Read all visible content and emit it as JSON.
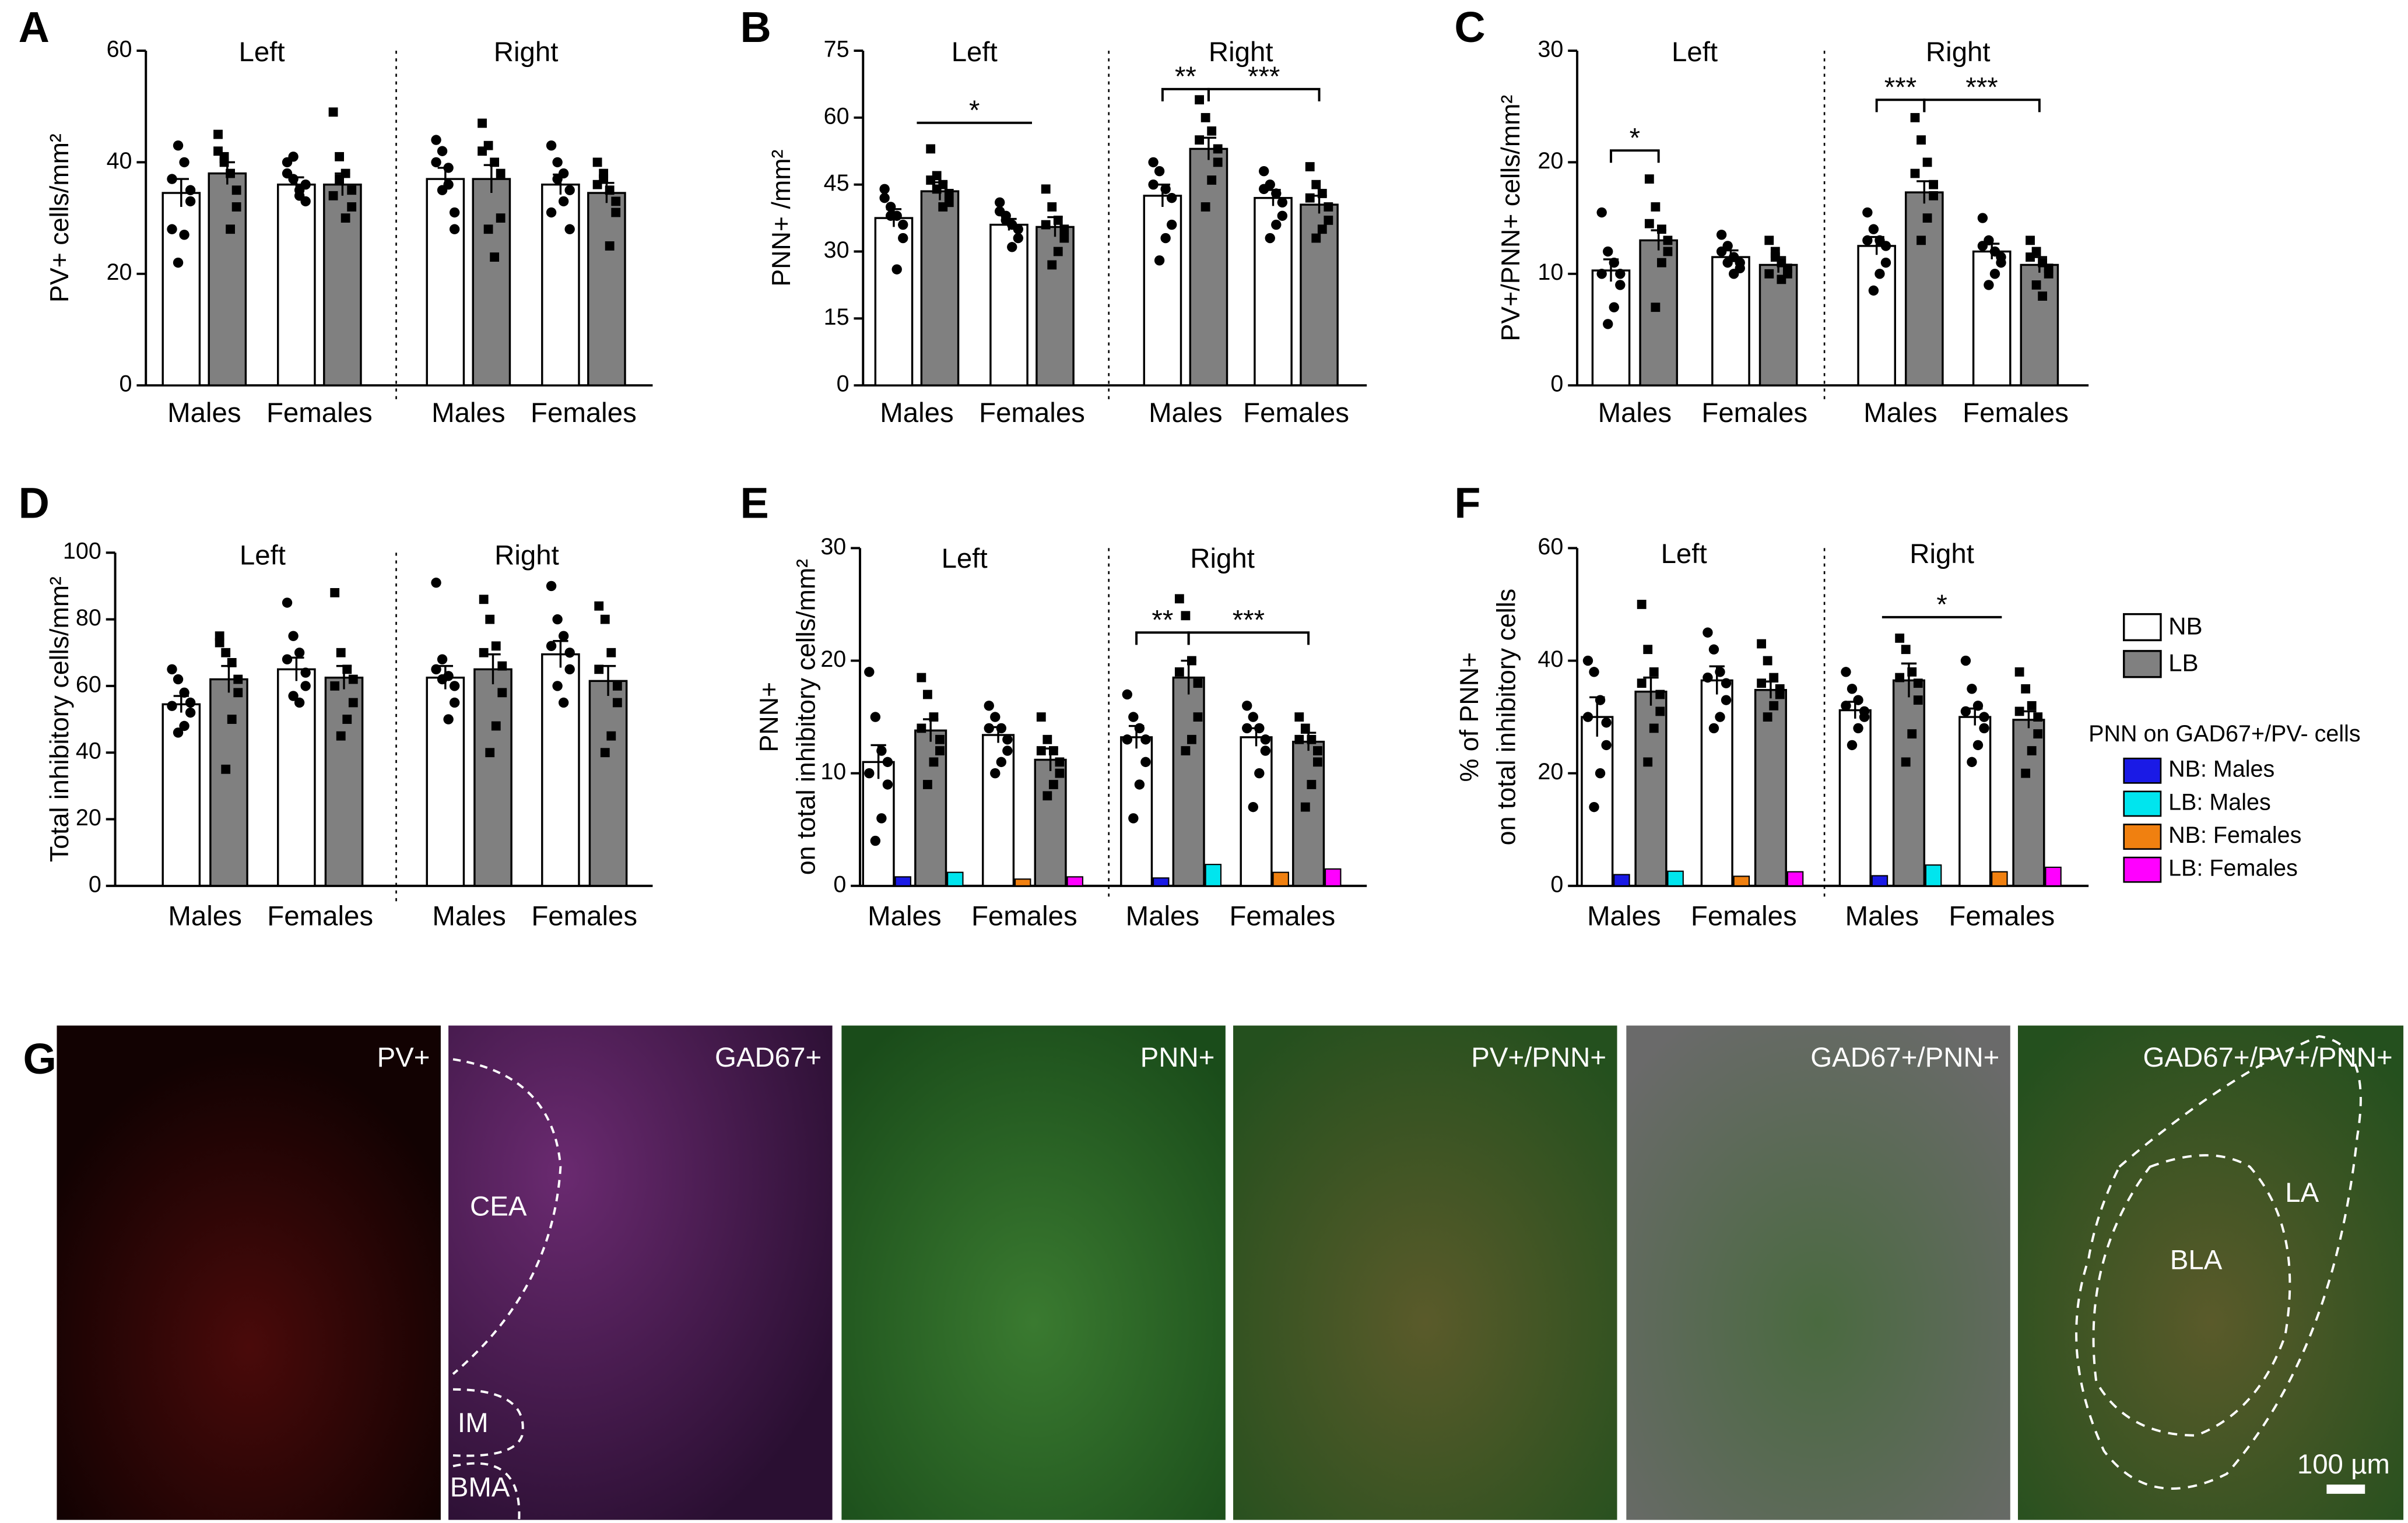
{
  "chart_data": [
    {
      "type": "bar",
      "panel": "A",
      "ylabel": [
        "PV+ cells/mm²"
      ],
      "groups": [
        "Left",
        "Right"
      ],
      "categories": [
        "Males",
        "Females",
        "Males",
        "Females"
      ],
      "ylim": [
        0,
        60
      ],
      "yticks": [
        0,
        20,
        40,
        60
      ],
      "annotations": [],
      "series": [
        {
          "color": "#ffffff",
          "values": [
            34.5,
            36,
            37,
            36
          ],
          "errors": [
            2.5,
            1.3,
            2,
            1.8
          ],
          "points": [
            [
              28,
              43,
              40,
              35,
              33,
              27,
              22,
              37
            ],
            [
              40,
              37,
              34,
              33,
              36,
              35,
              41,
              38
            ],
            [
              44,
              42,
              36,
              31,
              28,
              39,
              35,
              40
            ],
            [
              43,
              40,
              38,
              35,
              28,
              33,
              37,
              31
            ]
          ]
        },
        {
          "color": "#808080",
          "values": [
            38,
            36,
            37,
            34.5
          ],
          "errors": [
            2,
            2,
            2.5,
            1.8
          ],
          "points": [
            [
              42,
              41,
              38,
              35,
              32,
              28,
              40,
              45
            ],
            [
              49,
              41,
              38,
              35,
              32,
              30,
              37,
              34
            ],
            [
              47,
              43,
              40,
              38,
              30,
              23,
              28,
              42
            ],
            [
              40,
              37,
              35,
              33,
              31,
              25,
              38,
              36
            ]
          ]
        }
      ]
    },
    {
      "type": "bar",
      "panel": "B",
      "ylabel": [
        "PNN+ /mm²"
      ],
      "groups": [
        "Left",
        "Right"
      ],
      "categories": [
        "Males",
        "Females",
        "Males",
        "Females"
      ],
      "ylim": [
        0,
        75
      ],
      "yticks": [
        0,
        15,
        30,
        45,
        60,
        75
      ],
      "annotations": [
        "*",
        "**",
        "***"
      ],
      "series": [
        {
          "color": "#ffffff",
          "values": [
            37.5,
            36,
            42.5,
            42
          ],
          "errors": [
            2,
            1.3,
            2.5,
            1.8
          ],
          "points": [
            [
              44,
              40,
              38,
              36,
              33,
              26,
              38,
              42
            ],
            [
              41,
              38,
              36,
              35,
              33,
              31,
              37,
              39
            ],
            [
              50,
              48,
              44,
              42,
              36,
              33,
              28,
              45
            ],
            [
              48,
              45,
              43,
              41,
              38,
              36,
              33,
              44
            ]
          ]
        },
        {
          "color": "#808080",
          "values": [
            43.5,
            35.5,
            53,
            40.5
          ],
          "errors": [
            2,
            2.2,
            2.5,
            2
          ],
          "points": [
            [
              53,
              47,
              45,
              43,
              41,
              40,
              44,
              46
            ],
            [
              44,
              40,
              37,
              35,
              33,
              30,
              27,
              36
            ],
            [
              64,
              60,
              57,
              53,
              50,
              46,
              40,
              55
            ],
            [
              49,
              45,
              43,
              40,
              37,
              35,
              33,
              42
            ]
          ]
        }
      ]
    },
    {
      "type": "bar",
      "panel": "C",
      "ylabel": [
        "PV+/PNN+ cells/mm²"
      ],
      "groups": [
        "Left",
        "Right"
      ],
      "categories": [
        "Males",
        "Females",
        "Males",
        "Females"
      ],
      "ylim": [
        0,
        30
      ],
      "yticks": [
        0,
        10,
        20,
        30
      ],
      "annotations": [
        "*",
        "***",
        "***"
      ],
      "series": [
        {
          "color": "#ffffff",
          "values": [
            10.3,
            11.5,
            12.5,
            12
          ],
          "errors": [
            1,
            0.6,
            0.8,
            0.7
          ],
          "points": [
            [
              15.5,
              12,
              11,
              10,
              9,
              7,
              5.5,
              10
            ],
            [
              13.5,
              12.5,
              11.5,
              11,
              10.5,
              10,
              11,
              12
            ],
            [
              15.5,
              14,
              13,
              12.5,
              11,
              10,
              8.5,
              13
            ],
            [
              15,
              13,
              12,
              11.5,
              11,
              10,
              9,
              12.5
            ]
          ]
        },
        {
          "color": "#808080",
          "values": [
            13,
            10.8,
            17.3,
            10.8
          ],
          "errors": [
            0.9,
            0.7,
            1,
            0.7
          ],
          "points": [
            [
              18.5,
              16,
              14,
              13,
              12,
              11,
              7,
              14.5
            ],
            [
              13,
              12,
              11,
              10.5,
              10,
              9.5,
              11.5,
              10
            ],
            [
              24,
              22,
              20,
              18,
              17,
              15,
              13,
              19
            ],
            [
              13,
              12,
              11,
              10.5,
              10,
              8,
              9,
              11.5
            ]
          ]
        }
      ]
    },
    {
      "type": "bar",
      "panel": "D",
      "ylabel": [
        "Total inhibitory cells/mm²"
      ],
      "groups": [
        "Left",
        "Right"
      ],
      "categories": [
        "Males",
        "Females",
        "Males",
        "Females"
      ],
      "ylim": [
        0,
        100
      ],
      "yticks": [
        0,
        20,
        40,
        60,
        80,
        100
      ],
      "annotations": [],
      "series": [
        {
          "color": "#ffffff",
          "values": [
            54.5,
            65,
            62.5,
            69.5
          ],
          "errors": [
            2.5,
            3.5,
            3.5,
            4
          ],
          "points": [
            [
              65,
              62,
              58,
              55,
              52,
              48,
              46,
              54
            ],
            [
              85,
              75,
              70,
              64,
              60,
              55,
              57,
              68
            ],
            [
              91,
              68,
              63,
              60,
              55,
              50,
              62,
              65
            ],
            [
              90,
              80,
              75,
              70,
              65,
              55,
              60,
              72
            ]
          ]
        },
        {
          "color": "#808080",
          "values": [
            62,
            62.5,
            65,
            61.5
          ],
          "errors": [
            4,
            3.5,
            4.5,
            4.5
          ],
          "points": [
            [
              75,
              70,
              67,
              62,
              58,
              50,
              35,
              73
            ],
            [
              88,
              70,
              65,
              62,
              55,
              50,
              45,
              60
            ],
            [
              86,
              80,
              72,
              66,
              58,
              48,
              40,
              70
            ],
            [
              84,
              80,
              70,
              60,
              55,
              45,
              40,
              65
            ]
          ]
        }
      ]
    },
    {
      "type": "bar",
      "panel": "E",
      "ylabel": [
        "PNN+",
        "on total inhibitory cells/mm²"
      ],
      "groups": [
        "Left",
        "Right"
      ],
      "categories": [
        "Males",
        "Females",
        "Males",
        "Females"
      ],
      "ylim": [
        0,
        30
      ],
      "yticks": [
        0,
        10,
        20,
        30
      ],
      "annotations": [
        "**",
        "***"
      ],
      "series": [
        {
          "color": "#ffffff",
          "values": [
            11,
            13.4,
            13.2,
            13.2
          ],
          "errors": [
            1.5,
            0.7,
            1,
            0.8
          ],
          "points": [
            [
              19,
              15,
              12,
              11,
              9,
              6,
              4,
              10
            ],
            [
              16,
              15,
              14,
              13,
              12,
              11,
              10,
              14
            ],
            [
              17,
              15,
              14,
              13,
              11,
              9,
              6,
              13
            ],
            [
              16,
              15,
              14,
              13,
              12,
              10,
              7,
              14
            ]
          ]
        },
        {
          "color": "#808080",
          "values": [
            13.8,
            11.2,
            18.5,
            12.8
          ],
          "errors": [
            1,
            1,
            1.5,
            0.8
          ],
          "points": [
            [
              18.5,
              17,
              15,
              13,
              12,
              11,
              9,
              14
            ],
            [
              15,
              13,
              12,
              11,
              10,
              9,
              8,
              12
            ],
            [
              25.5,
              24,
              20,
              18,
              15,
              13,
              12,
              19
            ],
            [
              15,
              14,
              13,
              12,
              11,
              9,
              7,
              13
            ]
          ]
        }
      ],
      "small_series": [
        {
          "color": "#1a1ae6",
          "values": [
            0.8,
            0.7
          ]
        },
        {
          "color": "#00e5ee",
          "values": [
            1.2,
            1.9
          ]
        },
        {
          "color": "#f08010",
          "values": [
            0.6,
            1.2
          ]
        },
        {
          "color": "#ff00ff",
          "values": [
            0.8,
            1.5
          ]
        }
      ]
    },
    {
      "type": "bar",
      "panel": "F",
      "ylabel": [
        "% of PNN+",
        "on total inhibitory cells"
      ],
      "groups": [
        "Left",
        "Right"
      ],
      "categories": [
        "Males",
        "Females",
        "Males",
        "Females"
      ],
      "ylim": [
        0,
        60
      ],
      "yticks": [
        0,
        20,
        40,
        60
      ],
      "annotations": [
        "*"
      ],
      "series": [
        {
          "color": "#ffffff",
          "values": [
            30,
            36.5,
            31.2,
            30
          ],
          "errors": [
            3.5,
            2.5,
            1.5,
            1.5
          ],
          "points": [
            [
              40,
              38,
              33,
              29,
              25,
              20,
              14,
              30
            ],
            [
              45,
              42,
              38,
              36,
              33,
              30,
              28,
              37
            ],
            [
              38,
              35,
              33,
              31,
              30,
              28,
              25,
              32
            ],
            [
              40,
              35,
              32,
              30,
              28,
              25,
              22,
              31
            ]
          ]
        },
        {
          "color": "#808080",
          "values": [
            34.5,
            34.8,
            36.5,
            29.5
          ],
          "errors": [
            2.5,
            1.5,
            3,
            1.5
          ],
          "points": [
            [
              50,
              42,
              38,
              34,
              31,
              28,
              22,
              36
            ],
            [
              43,
              40,
              37,
              35,
              34,
              32,
              30,
              36
            ],
            [
              44,
              42,
              38,
              36,
              33,
              27,
              22,
              37
            ],
            [
              38,
              35,
              32,
              30,
              27,
              24,
              20,
              31
            ]
          ]
        }
      ],
      "small_series": [
        {
          "color": "#1a1ae6",
          "values": [
            2,
            1.8
          ]
        },
        {
          "color": "#00e5ee",
          "values": [
            2.6,
            3.7
          ]
        },
        {
          "color": "#f08010",
          "values": [
            1.7,
            2.5
          ]
        },
        {
          "color": "#ff00ff",
          "values": [
            2.5,
            3.3
          ]
        }
      ]
    }
  ],
  "legend": {
    "entries": [
      "NB",
      "LB"
    ],
    "title": "PNN on GAD67+/PV- cells",
    "small_entries": [
      "NB: Males",
      "LB: Males",
      "NB: Females",
      "LB: Females"
    ]
  },
  "panel_g": {
    "letter": "G",
    "labels": [
      "PV+",
      "GAD67+",
      "PNN+",
      "PV+/PNN+",
      "GAD67+/PNN+",
      "GAD67+/PV+/PNN+"
    ],
    "regions": [
      "CEA",
      "IM",
      "BMA",
      "LA",
      "BLA"
    ],
    "scale_bar": "100 µm"
  }
}
